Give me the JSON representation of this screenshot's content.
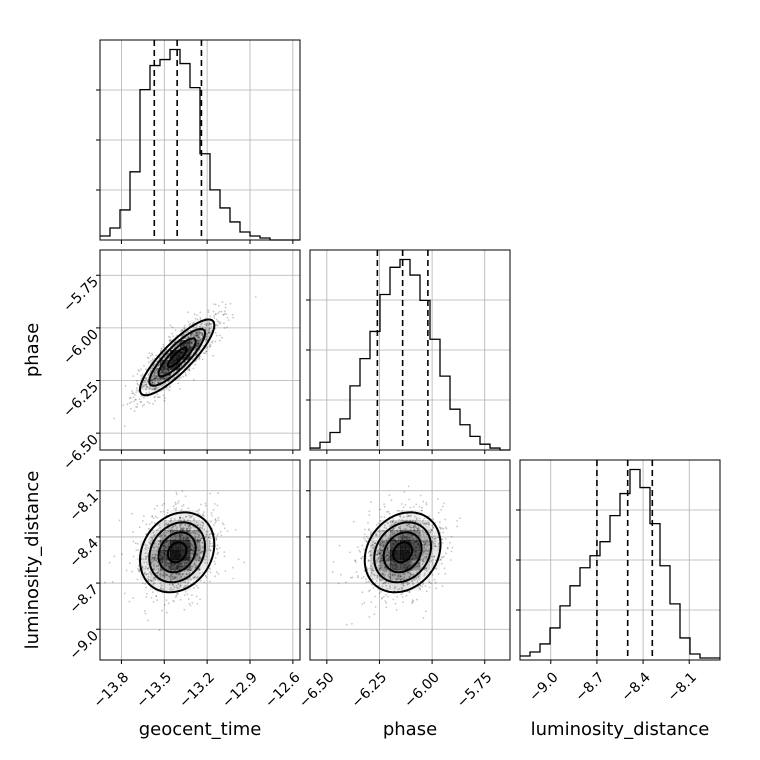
{
  "chart_data": {
    "type": "corner",
    "parameters": [
      "geocent_time",
      "phase",
      "luminosity_distance"
    ],
    "axis_labels": {
      "x": [
        "geocent_time",
        "phase",
        "luminosity_distance"
      ],
      "y": [
        "phase",
        "luminosity_distance"
      ]
    },
    "ranges": {
      "geocent_time": [
        -13.95,
        -12.55
      ],
      "phase": [
        -6.58,
        -5.63
      ],
      "luminosity_distance": [
        -9.2,
        -7.9
      ]
    },
    "ticks": {
      "geocent_time": [
        -13.8,
        -13.5,
        -13.2,
        -12.9,
        -12.6
      ],
      "phase": [
        -6.5,
        -6.25,
        -6.0,
        -5.75
      ],
      "luminosity_distance": [
        -9.0,
        -8.7,
        -8.4,
        -8.1
      ]
    },
    "tick_labels": {
      "geocent_time": [
        "−13.8",
        "−13.5",
        "−13.2",
        "−12.9",
        "−12.6"
      ],
      "phase": [
        "−6.50",
        "−6.25",
        "−6.00",
        "−5.75"
      ],
      "luminosity_distance": [
        "−9.0",
        "−8.7",
        "−8.4",
        "−8.1"
      ]
    },
    "quantiles": {
      "geocent_time": [
        -13.57,
        -13.41,
        -13.24
      ],
      "phase": [
        -6.26,
        -6.14,
        -6.02
      ],
      "luminosity_distance": [
        -8.7,
        -8.5,
        -8.34
      ]
    },
    "histograms": {
      "geocent_time": {
        "edges": [
          -13.95,
          -13.88,
          -13.81,
          -13.74,
          -13.67,
          -13.6,
          -13.53,
          -13.46,
          -13.39,
          -13.32,
          -13.25,
          -13.18,
          -13.11,
          -13.04,
          -12.97,
          -12.9,
          -12.83,
          -12.76,
          -12.69,
          -12.62,
          -12.55
        ],
        "counts": [
          2,
          6,
          15,
          34,
          75,
          87,
          90,
          95,
          88,
          76,
          43,
          25,
          16,
          9,
          4,
          2,
          1,
          0,
          0,
          0
        ]
      },
      "phase": {
        "edges": [
          -6.58,
          -6.5325,
          -6.485,
          -6.4375,
          -6.39,
          -6.3425,
          -6.295,
          -6.2475,
          -6.2,
          -6.1525,
          -6.105,
          -6.0575,
          -6.01,
          -5.9625,
          -5.915,
          -5.8675,
          -5.82,
          -5.7725,
          -5.725,
          -5.6775,
          -5.63
        ],
        "counts": [
          1,
          4,
          9,
          16,
          33,
          47,
          61,
          80,
          94,
          98,
          90,
          77,
          57,
          38,
          21,
          13,
          7,
          3,
          1,
          0
        ]
      },
      "luminosity_distance": {
        "edges": [
          -9.2,
          -9.135,
          -9.07,
          -9.005,
          -8.94,
          -8.875,
          -8.81,
          -8.745,
          -8.68,
          -8.615,
          -8.55,
          -8.485,
          -8.42,
          -8.355,
          -8.29,
          -8.225,
          -8.16,
          -8.095,
          -8.03,
          -7.965,
          -7.9
        ],
        "counts": [
          2,
          4,
          8,
          16,
          27,
          37,
          46,
          52,
          59,
          72,
          83,
          95,
          86,
          68,
          47,
          28,
          11,
          3,
          1,
          1
        ]
      }
    },
    "pairs": [
      {
        "x": "geocent_time",
        "y": "phase",
        "mean": [
          -13.41,
          -6.14
        ],
        "sigma": [
          0.13,
          0.09
        ],
        "correlation": 0.85,
        "contour_levels_sigma": [
          0.5,
          1.0,
          1.5,
          2.0
        ]
      },
      {
        "x": "geocent_time",
        "y": "luminosity_distance",
        "mean": [
          -13.41,
          -8.5
        ],
        "sigma": [
          0.13,
          0.13
        ],
        "correlation": 0.2,
        "contour_levels_sigma": [
          0.5,
          1.0,
          1.5,
          2.0
        ]
      },
      {
        "x": "phase",
        "y": "luminosity_distance",
        "mean": [
          -6.14,
          -8.5
        ],
        "sigma": [
          0.09,
          0.13
        ],
        "correlation": 0.2,
        "contour_levels_sigma": [
          0.5,
          1.0,
          1.5,
          2.0
        ]
      }
    ],
    "grid": true,
    "colors": {
      "line": "#000000",
      "grid": "#b0b0b0",
      "density": "#000000"
    }
  }
}
